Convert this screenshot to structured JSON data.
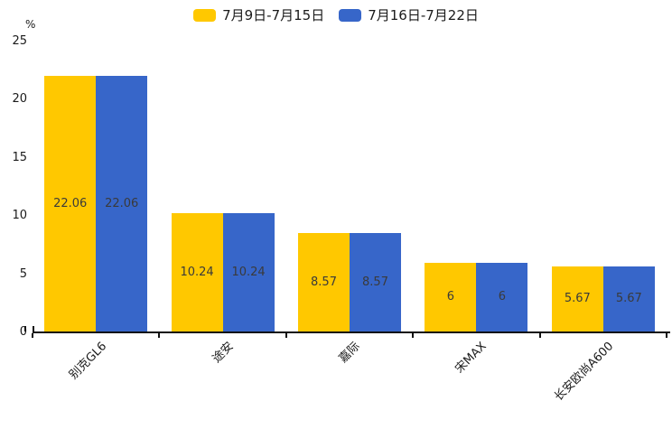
{
  "chart_data": {
    "type": "bar",
    "title": "",
    "ylabel": "%",
    "categories": [
      "别克GL6",
      "途安",
      "嘉际",
      "宋MAX",
      "长安欧尚A600"
    ],
    "series": [
      {
        "name": "7月9日-7月15日",
        "color": "#FFC800",
        "values": [
          22.06,
          10.24,
          8.57,
          6,
          5.67
        ]
      },
      {
        "name": "7月16日-7月22日",
        "color": "#3766C9",
        "values": [
          22.06,
          10.24,
          8.57,
          6,
          5.67
        ]
      }
    ],
    "ylim": [
      0,
      25
    ],
    "yticks": [
      0,
      5,
      10,
      15,
      20,
      25
    ],
    "grid": false,
    "legend_position": "top",
    "x_label_rotation_deg": -45,
    "bar_label_color": "#3A3A3A",
    "axis_color": "#111111",
    "background_color": "#FFFFFF"
  }
}
